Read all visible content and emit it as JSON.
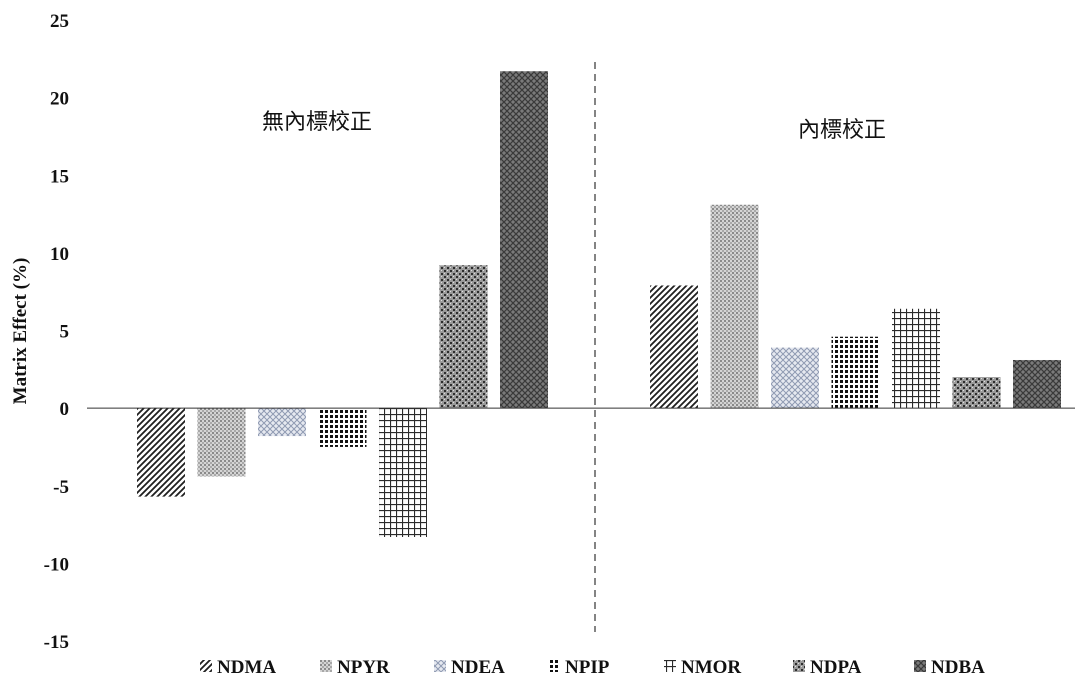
{
  "chart_data": {
    "type": "bar",
    "ylabel": "Matrix Effect (%)",
    "ylim": [
      -15,
      25
    ],
    "yticks": [
      25,
      20,
      15,
      10,
      5,
      0,
      -5,
      -10,
      -15
    ],
    "grid": false,
    "legend_placement": "bottom",
    "groups": [
      {
        "label": "無內標校正",
        "values": [
          -5.7,
          -4.4,
          -1.8,
          -2.5,
          -8.3,
          9.2,
          21.7
        ]
      },
      {
        "label": "內標校正",
        "values": [
          7.9,
          13.1,
          3.9,
          4.6,
          6.4,
          2.0,
          3.1
        ]
      }
    ],
    "series": [
      {
        "name": "NDMA",
        "pattern": "diagonal-stripes",
        "color": "#2b2b2b"
      },
      {
        "name": "NPYR",
        "pattern": "fine-dots",
        "color": "#8c8c8c"
      },
      {
        "name": "NDEA",
        "pattern": "diamond-weave",
        "color": "#9aa4b8"
      },
      {
        "name": "NPIP",
        "pattern": "dense-dots",
        "color": "#1a1a1a"
      },
      {
        "name": "NMOR",
        "pattern": "grid-lines",
        "color": "#333333"
      },
      {
        "name": "NDPA",
        "pattern": "speckle",
        "color": "#555555"
      },
      {
        "name": "NDBA",
        "pattern": "crosshatch",
        "color": "#4a4a4a"
      }
    ]
  }
}
